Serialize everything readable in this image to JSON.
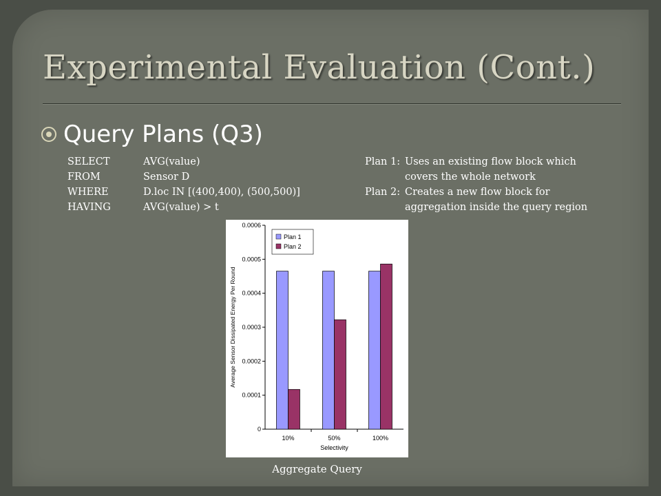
{
  "title": "Experimental Evaluation (Cont.)",
  "bullet": "Query Plans (Q3)",
  "sql": [
    {
      "kw": "SELECT",
      "val": "AVG(value)"
    },
    {
      "kw": "FROM",
      "val": "Sensor D"
    },
    {
      "kw": "WHERE",
      "val": "D.loc IN [(400,400), (500,500)]"
    },
    {
      "kw": "HAVING",
      "val": "AVG(value) > t"
    }
  ],
  "plans": [
    {
      "label": "Plan 1:",
      "line1": "Uses an existing flow block which",
      "line2": "covers the whole network"
    },
    {
      "label": "Plan 2:",
      "line1": "Creates a new flow block for",
      "line2": "aggregation inside the query region"
    }
  ],
  "caption": "Aggregate Query",
  "colors": {
    "plan1": "#9999ff",
    "plan2": "#993366"
  },
  "chart_data": {
    "type": "bar",
    "categories": [
      "10%",
      "50%",
      "100%"
    ],
    "series": [
      {
        "name": "Plan 1",
        "values": [
          0.000465,
          0.000465,
          0.000465
        ]
      },
      {
        "name": "Plan 2",
        "values": [
          0.000117,
          0.000322,
          0.000486
        ]
      }
    ],
    "title": "",
    "xlabel": "Selectivity",
    "ylabel": "Average Sensor Dissipated Energy Per Round",
    "ylim": [
      0,
      0.0006
    ],
    "yticks": [
      "0",
      "0.0001",
      "0.0002",
      "0.0003",
      "0.0004",
      "0.0005",
      "0.0006"
    ],
    "legend": "top-left",
    "grid": false
  }
}
